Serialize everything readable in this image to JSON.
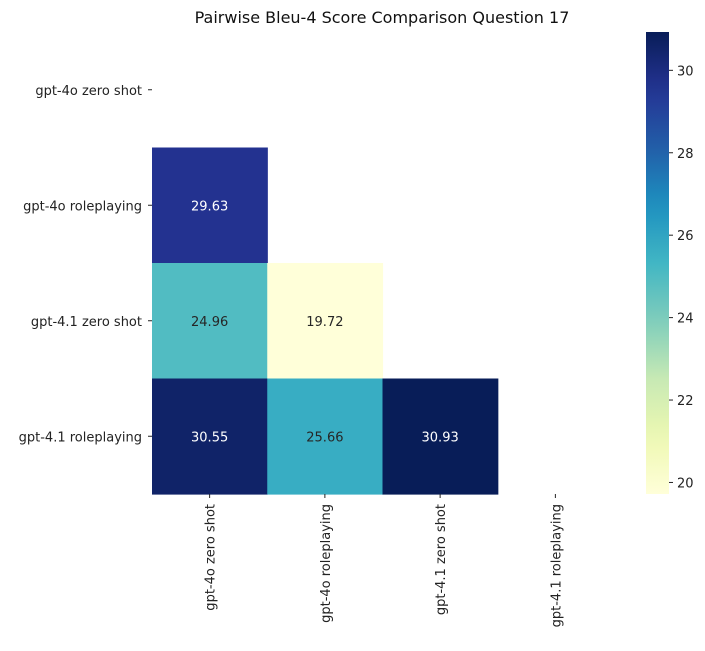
{
  "chart_data": {
    "type": "heatmap",
    "title": "Pairwise Bleu-4 Score Comparison Question 17",
    "xlabel": "",
    "ylabel": "",
    "row_labels": [
      "gpt-4o zero shot",
      "gpt-4o roleplaying",
      "gpt-4.1 zero shot",
      "gpt-4.1 roleplaying"
    ],
    "col_labels": [
      "gpt-4o zero shot",
      "gpt-4o roleplaying",
      "gpt-4.1 zero shot",
      "gpt-4.1 roleplaying"
    ],
    "values": [
      [
        null,
        null,
        null,
        null
      ],
      [
        29.63,
        null,
        null,
        null
      ],
      [
        24.96,
        19.72,
        null,
        null
      ],
      [
        30.55,
        25.66,
        30.93,
        null
      ]
    ],
    "value_labels": [
      [
        null,
        null,
        null,
        null
      ],
      [
        "29.63",
        null,
        null,
        null
      ],
      [
        "24.96",
        "19.72",
        null,
        null
      ],
      [
        "30.55",
        "25.66",
        "30.93",
        null
      ]
    ],
    "mask": "upper-triangle-and-diagonal",
    "colormap": "YlGnBu",
    "vmin": 19.72,
    "vmax": 30.93,
    "colorbar": {
      "ticks": [
        20,
        22,
        24,
        26,
        28,
        30
      ],
      "tick_labels": [
        "20",
        "22",
        "24",
        "26",
        "28",
        "30"
      ]
    },
    "grid": false
  }
}
